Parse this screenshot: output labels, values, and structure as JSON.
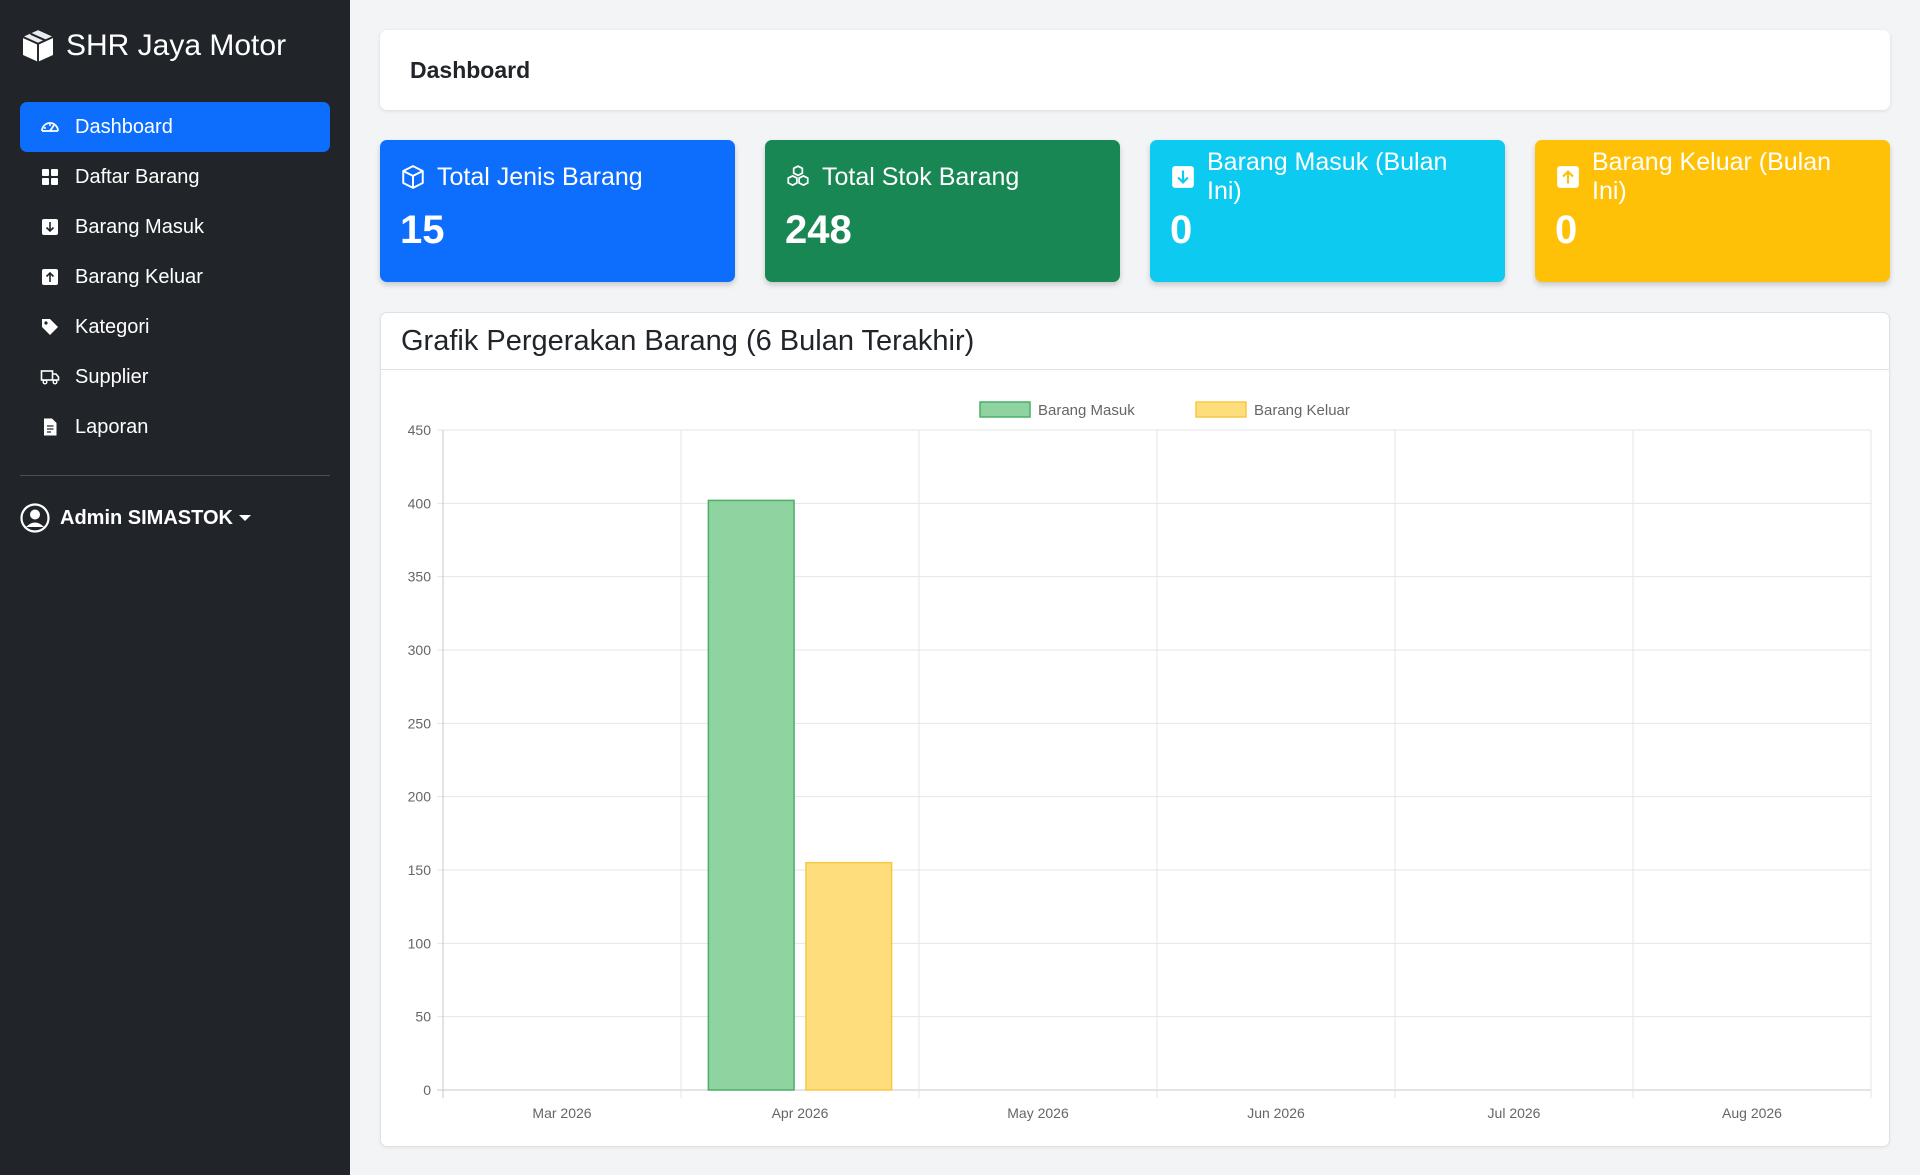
{
  "brand": {
    "name": "SHR Jaya Motor"
  },
  "sidebar": {
    "items": [
      {
        "label": "Dashboard",
        "icon": "dashboard-icon",
        "active": true
      },
      {
        "label": "Daftar Barang",
        "icon": "grid-icon"
      },
      {
        "label": "Barang Masuk",
        "icon": "arrow-down-square-icon"
      },
      {
        "label": "Barang Keluar",
        "icon": "arrow-up-square-icon"
      },
      {
        "label": "Kategori",
        "icon": "tag-icon"
      },
      {
        "label": "Supplier",
        "icon": "truck-icon"
      },
      {
        "label": "Laporan",
        "icon": "document-icon"
      }
    ],
    "user": "Admin SIMASTOK"
  },
  "header": {
    "title": "Dashboard"
  },
  "stats": [
    {
      "label": "Total Jenis Barang",
      "value": "15",
      "color": "#0d6efd",
      "icon": "box-icon"
    },
    {
      "label": "Total Stok Barang",
      "value": "248",
      "color": "#198754",
      "icon": "boxes-icon"
    },
    {
      "label": "Barang Masuk (Bulan Ini)",
      "value": "0",
      "color": "#0dcaf0",
      "icon": "arrow-down-square-icon"
    },
    {
      "label": "Barang Keluar (Bulan Ini)",
      "value": "0",
      "color": "#ffc107",
      "icon": "arrow-up-square-icon"
    }
  ],
  "chart_card": {
    "title": "Grafik Pergerakan Barang (6 Bulan Terakhir)"
  },
  "chart_data": {
    "type": "bar",
    "categories": [
      "Mar 2026",
      "Apr 2026",
      "May 2026",
      "Jun 2026",
      "Jul 2026",
      "Aug 2026"
    ],
    "series": [
      {
        "name": "Barang Masuk",
        "values": [
          0,
          402,
          0,
          0,
          0,
          0
        ],
        "color": "#8fd3a0",
        "border": "#4cae68"
      },
      {
        "name": "Barang Keluar",
        "values": [
          0,
          155,
          0,
          0,
          0,
          0
        ],
        "color": "#fedd7d",
        "border": "#f6c945"
      }
    ],
    "ylim": [
      0,
      450
    ],
    "yticks": [
      0,
      50,
      100,
      150,
      200,
      250,
      300,
      350,
      400,
      450
    ],
    "grid": true,
    "legend": "top-center"
  }
}
